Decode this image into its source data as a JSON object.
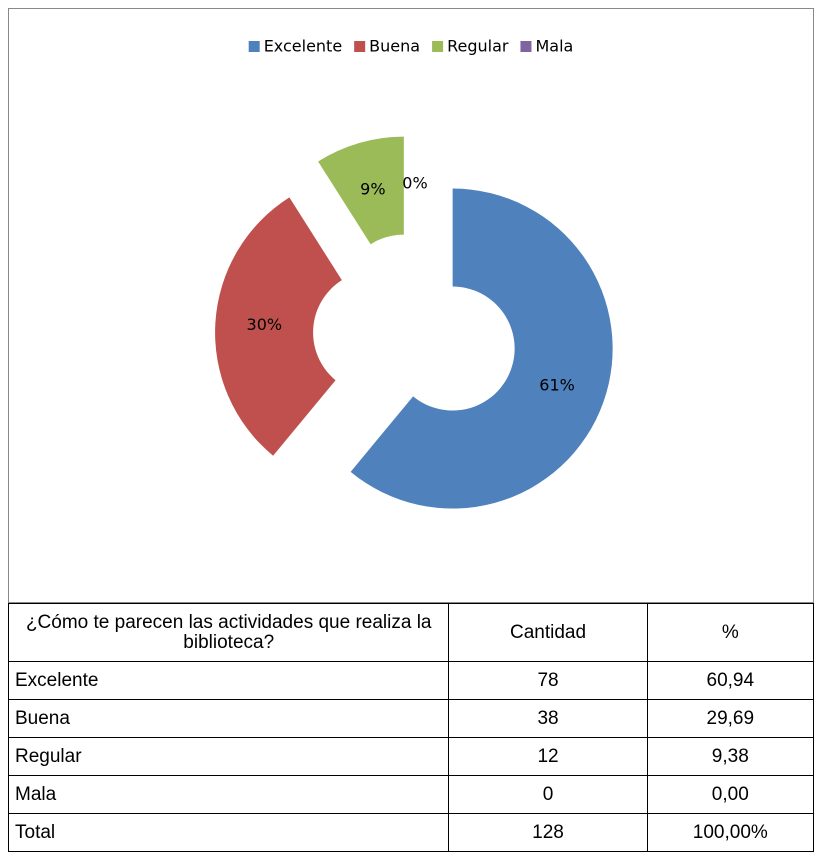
{
  "chart_data": {
    "type": "pie",
    "donut": true,
    "legend": "top",
    "categories": [
      "Excelente",
      "Buena",
      "Regular",
      "Mala"
    ],
    "values": [
      61,
      30,
      9,
      0
    ],
    "value_labels": [
      "61%",
      "30%",
      "9%",
      "0%"
    ],
    "colors": [
      "#4f81bd",
      "#c0504d",
      "#9bbb59",
      "#8064a2"
    ]
  },
  "table": {
    "header": [
      "¿Cómo te parecen las actividades que realiza la biblioteca?",
      "Cantidad",
      "%"
    ],
    "rows": [
      [
        "Excelente",
        "78",
        "60,94"
      ],
      [
        "Buena",
        "38",
        "29,69"
      ],
      [
        "Regular",
        "12",
        "9,38"
      ],
      [
        "Mala",
        "0",
        "0,00"
      ],
      [
        "Total",
        "128",
        "100,00%"
      ]
    ]
  }
}
